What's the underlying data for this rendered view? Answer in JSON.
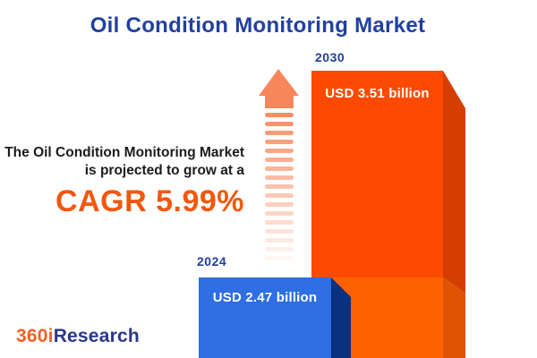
{
  "title": "Oil Condition Monitoring Market",
  "annotation": {
    "line1": "The Oil Condition Monitoring Market",
    "line2": "is projected to grow at a",
    "cagr_label": "CAGR 5.99%"
  },
  "chart_data": {
    "type": "bar",
    "title": "Oil Condition Monitoring Market",
    "categories": [
      "2024",
      "2030"
    ],
    "values": [
      2.47,
      3.51
    ],
    "unit": "USD billion",
    "value_labels": [
      "USD 2.47 billion",
      "USD 3.51 billion"
    ],
    "cagr_percent": 5.99,
    "legend": "none",
    "grid": false,
    "bar_style": "3d-extruded",
    "bar_colors": [
      "#2F6EE3",
      "#FC4A02"
    ]
  },
  "icons": {
    "growth_arrow": "upward-striped-arrow"
  },
  "logo": {
    "part1": "360i",
    "part2": "Research"
  },
  "colors": {
    "title_blue": "#21409E",
    "year_label_blue": "#21409A",
    "cagr_orange": "#F2570E",
    "bar_2024_front": "#2F6EE3",
    "bar_2024_side": "#0A3080",
    "bar_2030_front_upper": "#FC4A02",
    "bar_2030_front_lower": "#FF6100",
    "bar_2030_side_upper": "#D63E00",
    "bar_2030_side_lower": "#DE5403",
    "arrow_orange": "#F7875B",
    "logo_orange": "#F26122",
    "logo_navy": "#27388B",
    "text_dark": "#1B1B1B",
    "bar_value_text": "#FFFFFF",
    "background": "#FFFFFF"
  }
}
